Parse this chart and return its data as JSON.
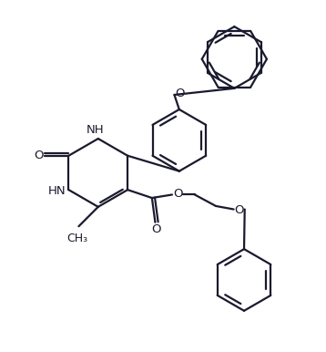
{
  "background_color": "#ffffff",
  "line_color": "#1a1a2e",
  "line_width": 1.6,
  "font_size": 9.5,
  "figsize": [
    3.58,
    3.86
  ],
  "dpi": 100,
  "xlim": [
    0,
    10
  ],
  "ylim": [
    0,
    10.8
  ]
}
